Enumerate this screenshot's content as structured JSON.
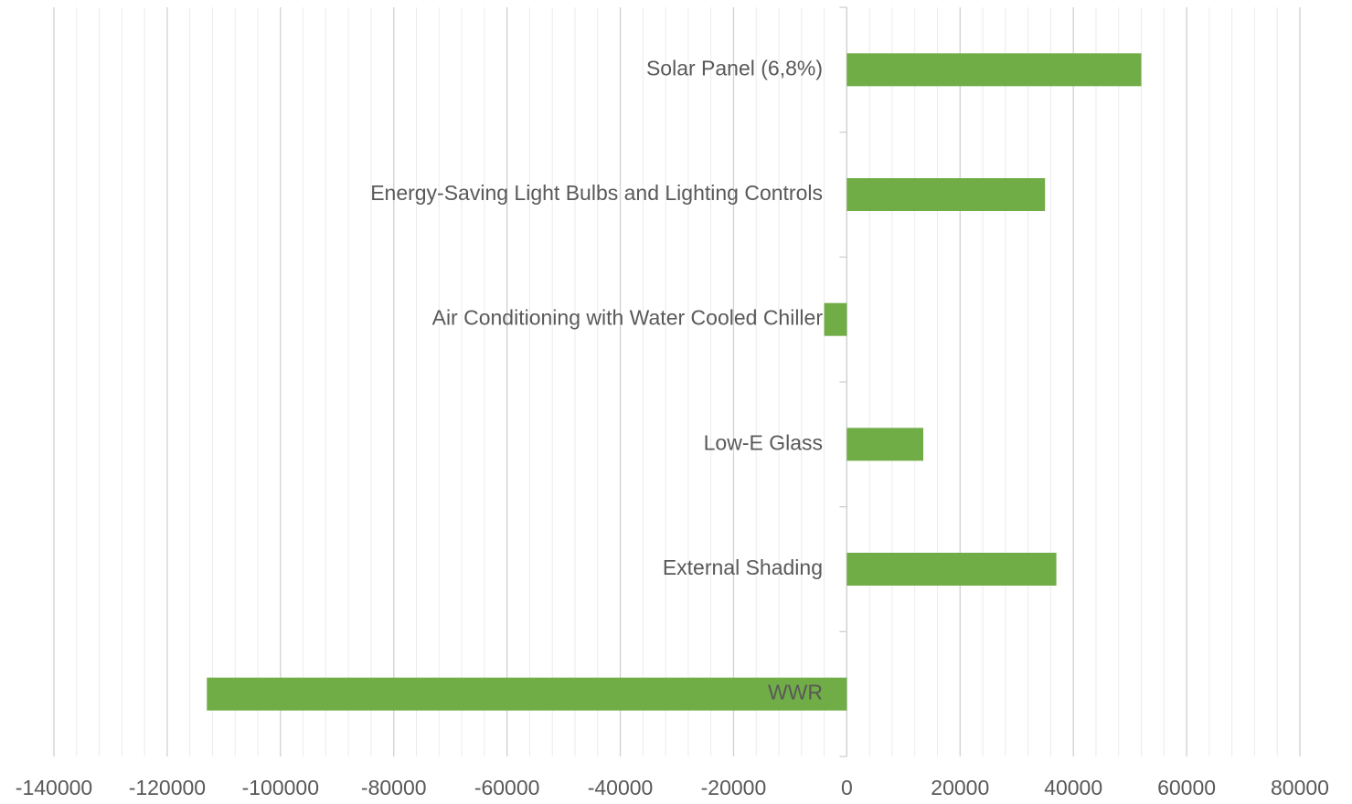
{
  "chart_data": {
    "type": "barh",
    "categories": [
      "Solar Panel (6,8%)",
      "Energy-Saving Light Bulbs and Lighting Controls",
      "Air Conditioning with Water Cooled Chiller",
      "Low-E Glass",
      "External Shading",
      "WWR"
    ],
    "values": [
      52000,
      35000,
      -4000,
      13500,
      37000,
      -113000
    ],
    "color": "#70ad47",
    "xlim": [
      -140000,
      80000
    ],
    "xticks": [
      -140000,
      -120000,
      -100000,
      -80000,
      -60000,
      -40000,
      -20000,
      0,
      20000,
      40000,
      60000,
      80000
    ],
    "grid": true
  }
}
